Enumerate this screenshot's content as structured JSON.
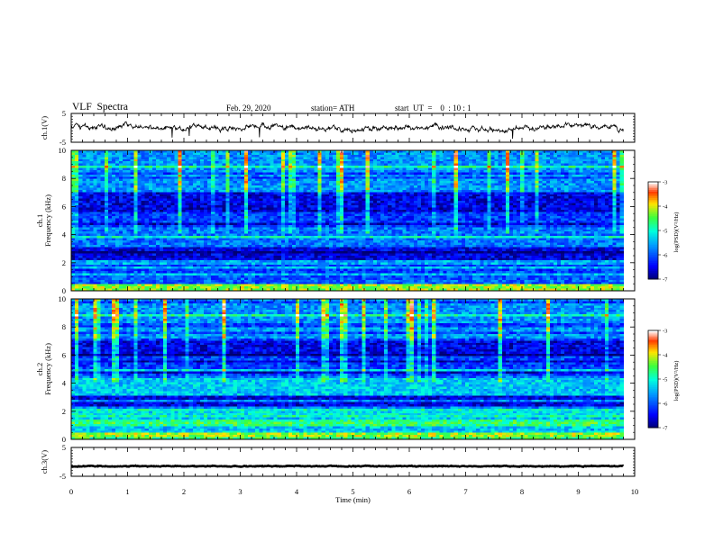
{
  "header": {
    "title": "VLF  Spectra",
    "date": "Feb. 29, 2020",
    "station": "station= ATH",
    "start_ut": "start  UT  =    0  : 10 : 1"
  },
  "chart_data": [
    {
      "id": "ch1-waveform",
      "type": "line",
      "ylabel": "ch.1(V)",
      "ylim": [
        -5,
        5
      ],
      "yticks": [
        "5",
        "-5"
      ],
      "xlim": [
        0,
        10
      ],
      "series": [
        {
          "x_range": [
            0,
            9.8
          ],
          "level": 0,
          "noise_amplitude": 1.0
        }
      ]
    },
    {
      "id": "ch1-spectrogram",
      "type": "heatmap",
      "ylabel": "Frequency  (kHz)",
      "channel_label": "ch.1",
      "ylim": [
        0,
        10
      ],
      "yticks": [
        "0",
        "2",
        "4",
        "6",
        "8",
        "10"
      ],
      "xlim": [
        0,
        10
      ],
      "data_x_range": [
        0,
        9.8
      ],
      "colorbar": {
        "label": "log(PSD)(V²/Hz)",
        "range": [
          -7,
          -3
        ],
        "ticks": [
          "-3",
          "-4",
          "-5",
          "-6",
          "-7"
        ]
      }
    },
    {
      "id": "ch2-spectrogram",
      "type": "heatmap",
      "ylabel": "Frequency  (kHz)",
      "channel_label": "ch.2",
      "ylim": [
        0,
        10
      ],
      "yticks": [
        "0",
        "2",
        "4",
        "6",
        "8",
        "10"
      ],
      "xlim": [
        0,
        10
      ],
      "data_x_range": [
        0,
        9.8
      ],
      "colorbar": {
        "label": "log(PSD)(V²/Hz)",
        "range": [
          -7,
          -3
        ],
        "ticks": [
          "-3",
          "-4",
          "-5",
          "-6",
          "-7"
        ]
      }
    },
    {
      "id": "ch3-waveform",
      "type": "line",
      "ylabel": "ch.3(V)",
      "ylim": [
        -5,
        5
      ],
      "yticks": [
        "5",
        "-5"
      ],
      "xlim": [
        0,
        10
      ],
      "xlabel": "Time  (min)",
      "xticks": [
        "0",
        "1",
        "2",
        "3",
        "4",
        "5",
        "6",
        "7",
        "8",
        "9",
        "10"
      ],
      "series": [
        {
          "x_range": [
            0,
            9.8
          ],
          "level": -1.5,
          "noise_amplitude": 0.15
        }
      ]
    }
  ],
  "colors": {
    "axis": "#000000",
    "trace": "#000000",
    "background": "#ffffff"
  }
}
